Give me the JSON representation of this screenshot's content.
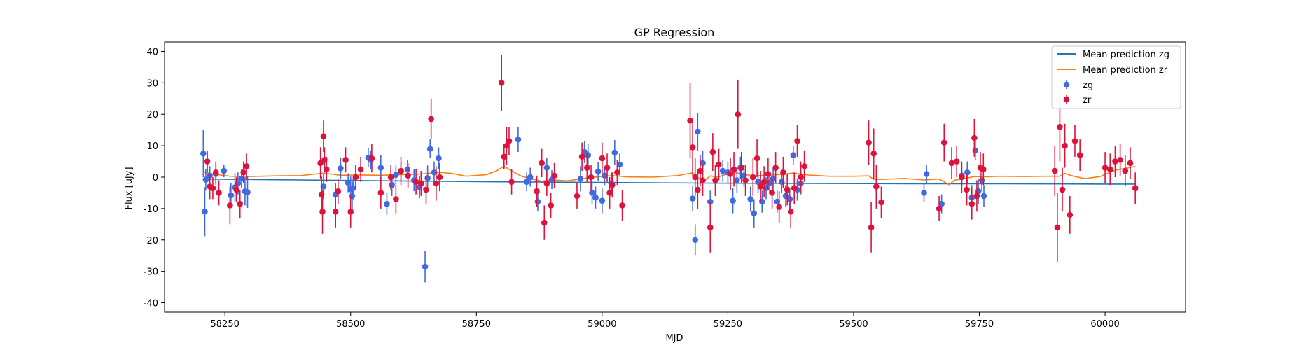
{
  "chart_data": {
    "type": "scatter",
    "title": "GP Regression",
    "xlabel": "MJD",
    "ylabel": "Flux [uJy]",
    "xlim": [
      58130,
      60160
    ],
    "ylim": [
      -43,
      43
    ],
    "xticks": [
      58250,
      58500,
      58750,
      59000,
      59250,
      59500,
      59750,
      60000
    ],
    "yticks": [
      -40,
      -30,
      -20,
      -10,
      0,
      10,
      20,
      30,
      40
    ],
    "grid": false,
    "legend_position": "top-right",
    "lines": [
      {
        "name": "Mean prediction zg",
        "color": "#1f77b4",
        "x": [
          58208,
          58400,
          58600,
          58800,
          59000,
          59200,
          59400,
          59600,
          59800,
          60000,
          60060
        ],
        "y": [
          -0.6,
          -0.9,
          -1.2,
          -1.5,
          -1.7,
          -1.9,
          -2.0,
          -2.1,
          -2.1,
          -2.2,
          -2.2
        ]
      },
      {
        "name": "Mean prediction zr",
        "color": "#ff7f0e",
        "x": [
          58208,
          58230,
          58260,
          58300,
          58350,
          58400,
          58430,
          58445,
          58460,
          58480,
          58520,
          58560,
          58600,
          58640,
          58660,
          58680,
          58700,
          58730,
          58770,
          58790,
          58805,
          58820,
          58840,
          58860,
          58880,
          58900,
          58930,
          58960,
          58990,
          59020,
          59050,
          59100,
          59150,
          59180,
          59190,
          59200,
          59215,
          59230,
          59260,
          59300,
          59340,
          59380,
          59410,
          59450,
          59500,
          59530,
          59540,
          59560,
          59600,
          59640,
          59670,
          59690,
          59700,
          59720,
          59740,
          59760,
          59790,
          59840,
          59880,
          59910,
          59920,
          59935,
          59960,
          59990,
          60020,
          60060
        ],
        "y": [
          1.6,
          0.9,
          0.3,
          0.2,
          0.4,
          0.5,
          1.0,
          1.3,
          1.0,
          0.6,
          0.7,
          0.6,
          0.8,
          1.0,
          1.3,
          1.5,
          1.2,
          0.3,
          0.8,
          2.0,
          3.5,
          2.0,
          0.3,
          -0.6,
          -1.3,
          -0.8,
          -1.2,
          -0.5,
          0.1,
          0.5,
          0.1,
          0.0,
          0.5,
          1.4,
          0.0,
          -1.6,
          0.4,
          0.0,
          1.6,
          0.4,
          0.7,
          1.3,
          0.7,
          0.3,
          0.3,
          0.4,
          -0.7,
          -0.7,
          -0.4,
          -0.9,
          -0.6,
          -2.4,
          -1.0,
          -0.5,
          0.2,
          0.1,
          0.3,
          0.2,
          0.3,
          0.3,
          1.2,
          0.4,
          -0.5,
          0.2,
          2.2,
          3.4
        ]
      }
    ],
    "series": [
      {
        "name": "zg",
        "color": "#4169e1",
        "x": [
          58207,
          58210,
          58212,
          58220,
          58232,
          58248,
          58262,
          58270,
          58276,
          58283,
          58290,
          58295,
          58446,
          58470,
          58480,
          58495,
          58500,
          58503,
          58505,
          58535,
          58540,
          58560,
          58572,
          58582,
          58590,
          58600,
          58613,
          58626,
          58637,
          58648,
          58653,
          58658,
          58666,
          58675,
          58833,
          58850,
          58857,
          58872,
          58890,
          58900,
          58957,
          58965,
          58972,
          58980,
          58987,
          58992,
          59000,
          59005,
          59018,
          59025,
          59035,
          59180,
          59185,
          59190,
          59200,
          59215,
          59240,
          59250,
          59260,
          59268,
          59275,
          59282,
          59295,
          59302,
          59310,
          59318,
          59326,
          59333,
          59340,
          59348,
          59357,
          59365,
          59373,
          59380,
          59388,
          59395,
          59640,
          59645,
          59675,
          59715,
          59726,
          59735,
          59742,
          59748,
          59755,
          59759
        ],
        "y": [
          7.5,
          -11.0,
          -0.8,
          0.5,
          1.0,
          2.0,
          -5.8,
          -3.2,
          -2.0,
          -0.5,
          -4.5,
          -4.8,
          -3.0,
          -5.5,
          2.8,
          -1.8,
          -3.8,
          -6.0,
          -3.5,
          6.2,
          5.5,
          3.0,
          -8.5,
          -2.5,
          0.7,
          1.8,
          2.5,
          -1.0,
          -3.2,
          -28.5,
          -0.3,
          9.0,
          1.5,
          6.0,
          12.0,
          -1.5,
          0.0,
          -7.8,
          3.0,
          -0.8,
          -0.5,
          8.0,
          7.0,
          -5.0,
          -6.5,
          1.8,
          -7.5,
          0.5,
          -2.0,
          7.8,
          4.0,
          -6.8,
          -20.0,
          14.5,
          4.5,
          -7.8,
          2.0,
          1.5,
          -7.5,
          -1.0,
          3.0,
          0.5,
          -7.0,
          -11.5,
          -1.5,
          -7.8,
          -3.5,
          -1.8,
          -0.5,
          -7.8,
          -1.5,
          -6.0,
          -7.0,
          7.0,
          -4.0,
          -2.0,
          -5.0,
          1.0,
          -8.5,
          0.5,
          1.5,
          -6.5,
          8.5,
          -4.5,
          -1.0,
          -6.0
        ],
        "err": [
          7.5,
          7.8,
          3.5,
          3.0,
          3.5,
          2.0,
          4.0,
          4.5,
          3.5,
          3.0,
          4.5,
          5.0,
          4.0,
          3.5,
          3.5,
          3.0,
          4.0,
          4.5,
          3.5,
          3.0,
          3.0,
          4.0,
          3.5,
          3.5,
          3.0,
          3.0,
          3.0,
          3.5,
          3.5,
          5.0,
          4.0,
          3.0,
          3.5,
          3.5,
          4.0,
          3.0,
          3.0,
          3.0,
          3.0,
          3.0,
          4.0,
          3.5,
          3.5,
          3.5,
          3.5,
          3.0,
          4.0,
          3.0,
          3.5,
          4.0,
          3.5,
          4.0,
          5.0,
          6.0,
          4.0,
          3.5,
          3.5,
          3.5,
          4.0,
          4.0,
          3.5,
          3.5,
          4.0,
          4.5,
          3.5,
          3.5,
          3.5,
          3.5,
          3.5,
          3.5,
          3.5,
          3.5,
          3.5,
          3.0,
          3.5,
          3.5,
          3.0,
          3.0,
          3.0,
          3.0,
          3.5,
          4.0,
          3.0,
          4.0,
          3.5,
          3.5
        ]
      },
      {
        "name": "zr",
        "color": "#dc143c",
        "x": [
          58215,
          58220,
          58226,
          58232,
          58238,
          58260,
          58273,
          58280,
          58287,
          58293,
          58440,
          58442,
          58444,
          58446,
          58448,
          58452,
          58470,
          58475,
          58490,
          58500,
          58510,
          58520,
          58542,
          58560,
          58580,
          58590,
          58600,
          58614,
          58630,
          58640,
          58650,
          58660,
          58670,
          58677,
          58800,
          58805,
          58810,
          58815,
          58820,
          58870,
          58880,
          58885,
          58890,
          58898,
          58905,
          58950,
          58960,
          58970,
          58978,
          59000,
          59010,
          59015,
          59020,
          59030,
          59040,
          59175,
          59180,
          59185,
          59190,
          59195,
          59200,
          59215,
          59220,
          59225,
          59232,
          59255,
          59262,
          59270,
          59277,
          59285,
          59300,
          59308,
          59315,
          59322,
          59330,
          59338,
          59345,
          59352,
          59360,
          59368,
          59375,
          59382,
          59388,
          59395,
          59402,
          59530,
          59535,
          59540,
          59545,
          59555,
          59670,
          59680,
          59695,
          59705,
          59715,
          59725,
          59735,
          59740,
          59745,
          59752,
          59758,
          59900,
          59905,
          59910,
          59915,
          59920,
          59930,
          59940,
          59950,
          60000,
          60010,
          60020,
          60030,
          60040,
          60050,
          60060
        ],
        "y": [
          5.0,
          -3.0,
          -3.5,
          1.5,
          -5.0,
          -9.0,
          -4.0,
          -8.5,
          1.5,
          3.5,
          4.5,
          -5.5,
          -11.0,
          13.0,
          5.5,
          2.5,
          -11.0,
          -4.5,
          5.5,
          -11.0,
          0.0,
          2.5,
          6.0,
          -5.0,
          0.0,
          -7.0,
          2.0,
          0.5,
          -1.5,
          -2.0,
          -4.0,
          18.5,
          -2.0,
          0.0,
          30.0,
          6.5,
          10.0,
          11.5,
          -1.5,
          -4.5,
          4.5,
          -14.5,
          -2.0,
          -9.0,
          0.5,
          -6.0,
          6.5,
          3.0,
          0.0,
          6.0,
          3.0,
          -5.0,
          -2.5,
          1.5,
          -9.0,
          18.0,
          9.5,
          0.0,
          -4.0,
          2.0,
          -1.0,
          -16.0,
          8.0,
          -1.0,
          4.0,
          1.0,
          2.5,
          20.0,
          3.0,
          -1.0,
          0.0,
          6.0,
          -3.0,
          -1.5,
          1.0,
          -5.0,
          3.0,
          -9.5,
          1.5,
          -4.0,
          -11.0,
          -3.5,
          11.5,
          0.0,
          3.5,
          11.0,
          -16.0,
          7.5,
          -3.0,
          -8.0,
          -10.0,
          11.0,
          4.5,
          5.0,
          0.0,
          -4.0,
          -8.5,
          12.5,
          -6.0,
          3.0,
          2.5,
          2.0,
          -16.0,
          16.0,
          -4.0,
          10.0,
          -12.0,
          11.5,
          7.0,
          3.0,
          2.5,
          5.0,
          5.5,
          2.0,
          4.5,
          -3.5
        ],
        "err": [
          3.5,
          4.0,
          3.5,
          3.5,
          4.0,
          6.0,
          4.0,
          4.5,
          3.5,
          4.0,
          5.0,
          6.0,
          7.0,
          5.0,
          4.0,
          4.0,
          5.0,
          4.0,
          4.0,
          5.0,
          4.0,
          4.0,
          4.5,
          5.0,
          4.0,
          4.5,
          4.5,
          4.0,
          4.0,
          4.0,
          4.5,
          6.5,
          5.5,
          4.5,
          9.0,
          4.0,
          6.0,
          4.5,
          4.0,
          5.0,
          4.5,
          5.5,
          4.0,
          4.0,
          4.0,
          4.0,
          4.5,
          4.5,
          4.0,
          5.0,
          4.5,
          5.0,
          4.0,
          4.0,
          5.0,
          12.0,
          9.0,
          6.0,
          6.0,
          5.0,
          5.0,
          8.0,
          6.0,
          5.0,
          5.0,
          5.0,
          5.5,
          11.0,
          5.0,
          5.0,
          6.0,
          6.0,
          5.0,
          5.0,
          5.0,
          5.0,
          5.0,
          5.0,
          5.0,
          5.0,
          5.0,
          5.0,
          5.0,
          5.0,
          5.0,
          7.0,
          8.0,
          8.0,
          7.0,
          5.0,
          4.0,
          6.0,
          5.0,
          5.0,
          5.0,
          5.0,
          5.0,
          6.0,
          5.0,
          5.0,
          5.0,
          8.0,
          11.0,
          11.0,
          7.0,
          7.0,
          6.0,
          5.0,
          5.0,
          5.0,
          5.0,
          5.0,
          5.0,
          5.0,
          5.0,
          5.0
        ]
      }
    ]
  }
}
